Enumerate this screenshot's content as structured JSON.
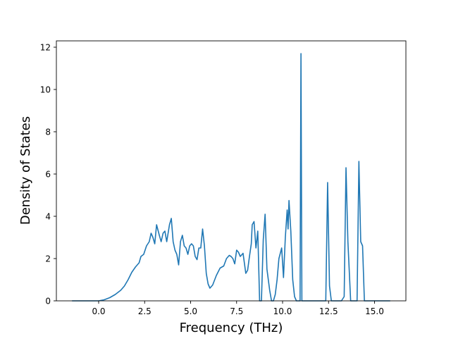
{
  "chart_data": {
    "type": "line",
    "title": "",
    "xlabel": "Frequency (THz)",
    "ylabel": "Density of States",
    "xlim": [
      -2.0,
      16.5
    ],
    "ylim": [
      0,
      12.3
    ],
    "grid": false,
    "legend": null,
    "line_color": "#1f77b4",
    "xticks": [
      0.0,
      2.5,
      5.0,
      7.5,
      10.0,
      12.5,
      15.0
    ],
    "xtick_labels": [
      "0.0",
      "2.5",
      "5.0",
      "7.5",
      "10.0",
      "12.5",
      "15.0"
    ],
    "yticks": [
      0,
      2,
      4,
      6,
      8,
      10,
      12
    ],
    "ytick_labels": [
      "0",
      "2",
      "4",
      "6",
      "8",
      "10",
      "12"
    ],
    "series": [
      {
        "name": "DOS",
        "x": [
          -1.45,
          -1.0,
          -0.5,
          0.0,
          0.3,
          0.6,
          0.9,
          1.2,
          1.4,
          1.6,
          1.8,
          2.0,
          2.2,
          2.3,
          2.45,
          2.6,
          2.75,
          2.85,
          2.95,
          3.05,
          3.15,
          3.3,
          3.4,
          3.5,
          3.6,
          3.7,
          3.85,
          3.95,
          4.05,
          4.15,
          4.25,
          4.35,
          4.45,
          4.55,
          4.65,
          4.75,
          4.85,
          4.95,
          5.05,
          5.15,
          5.25,
          5.35,
          5.45,
          5.55,
          5.65,
          5.75,
          5.85,
          5.95,
          6.05,
          6.2,
          6.4,
          6.6,
          6.8,
          6.95,
          7.1,
          7.2,
          7.3,
          7.4,
          7.5,
          7.6,
          7.7,
          7.85,
          8.0,
          8.1,
          8.2,
          8.3,
          8.35,
          8.45,
          8.55,
          8.65,
          8.75,
          8.85,
          8.95,
          9.05,
          9.15,
          9.3,
          9.4,
          9.5,
          9.6,
          9.7,
          9.8,
          9.95,
          10.05,
          10.15,
          10.25,
          10.3,
          10.35,
          10.45,
          10.55,
          10.65,
          10.75,
          10.85,
          10.95,
          11.0,
          11.05,
          11.15,
          11.3,
          12.0,
          12.35,
          12.45,
          12.55,
          12.65,
          12.75,
          13.2,
          13.35,
          13.45,
          13.55,
          13.7,
          13.85,
          13.95,
          14.05,
          14.15,
          14.25,
          14.35,
          14.45,
          15.0,
          15.5,
          15.85
        ],
        "y": [
          0.0,
          0.0,
          0.0,
          0.0,
          0.05,
          0.15,
          0.3,
          0.5,
          0.7,
          1.0,
          1.35,
          1.6,
          1.8,
          2.1,
          2.2,
          2.6,
          2.8,
          3.2,
          3.0,
          2.7,
          3.6,
          3.1,
          2.8,
          3.2,
          3.3,
          2.8,
          3.6,
          3.9,
          2.8,
          2.4,
          2.2,
          1.7,
          2.8,
          3.1,
          2.6,
          2.5,
          2.2,
          2.6,
          2.7,
          2.6,
          2.1,
          1.95,
          2.5,
          2.5,
          3.4,
          2.6,
          1.3,
          0.8,
          0.6,
          0.75,
          1.2,
          1.55,
          1.65,
          2.0,
          2.15,
          2.1,
          2.0,
          1.75,
          2.4,
          2.3,
          2.1,
          2.25,
          1.3,
          1.45,
          2.1,
          2.7,
          3.6,
          3.75,
          2.5,
          3.3,
          0.0,
          0.0,
          2.9,
          4.1,
          1.5,
          0.5,
          0.0,
          0.0,
          0.3,
          1.0,
          2.0,
          2.5,
          1.1,
          3.0,
          4.3,
          3.4,
          4.75,
          3.3,
          1.0,
          0.2,
          0.0,
          0.0,
          0.0,
          11.7,
          0.0,
          0.0,
          0.0,
          0.0,
          0.0,
          5.6,
          0.7,
          0.0,
          0.0,
          0.0,
          0.2,
          6.3,
          2.8,
          0.0,
          0.0,
          0.0,
          0.0,
          6.6,
          2.8,
          2.6,
          0.0,
          0.0,
          0.0,
          0.0
        ]
      }
    ]
  }
}
